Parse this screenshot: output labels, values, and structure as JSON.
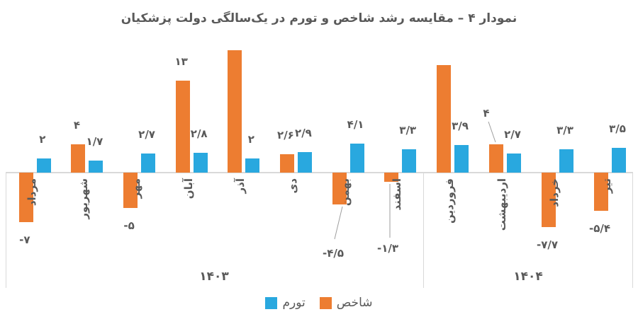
{
  "colors": {
    "index": "#ED7D31",
    "inflation": "#29A8DF",
    "text": "#595959",
    "axis": "#D9D9D9",
    "leader": "#9E9E9E"
  },
  "chart_data": {
    "type": "bar",
    "title": "نمودار ۴ – مقایسه رشد شاخص و تورم در یک‌سالگی دولت پزشکیان",
    "categories": [
      "مرداد",
      "شهریور",
      "مهر",
      "آبان",
      "آذر",
      "دی",
      "بهمن",
      "اسفند",
      "فروردین",
      "اردیبهشت",
      "خرداد",
      "تیر"
    ],
    "series": [
      {
        "name": "شاخص",
        "color_key": "index",
        "values": [
          -7,
          4,
          -5,
          13,
          17.3,
          2.6,
          -4.5,
          -1.3,
          15.2,
          4,
          -7.7,
          -5.4
        ],
        "labels": [
          "-۷",
          "۴",
          "-۵",
          "۱۳",
          "",
          "۲/۶",
          "-۴/۵",
          "-۱/۳",
          "",
          "۴",
          "-۷/۷",
          "-۵/۴"
        ],
        "callout_points": [
          6,
          7,
          9
        ]
      },
      {
        "name": "تورم",
        "color_key": "inflation",
        "values": [
          2,
          1.7,
          2.7,
          2.8,
          2,
          2.9,
          4.1,
          3.3,
          3.9,
          2.7,
          3.3,
          3.5
        ],
        "labels": [
          "۲",
          "۱/۷",
          "۲/۷",
          "۲/۸",
          "۲",
          "۲/۹",
          "۴/۱",
          "۳/۳",
          "۳/۹",
          "۲/۷",
          "۳/۳",
          "۳/۵"
        ],
        "callout_points": []
      }
    ],
    "groups": [
      {
        "label": "۱۴۰۳",
        "months": 8
      },
      {
        "label": "۱۴۰۴",
        "months": 4
      }
    ],
    "xlabel": "",
    "ylabel": "",
    "ylim": [
      -10,
      18
    ],
    "grid": false,
    "legend_position": "bottom-center",
    "legend_order": [
      "تورم",
      "شاخص"
    ]
  }
}
